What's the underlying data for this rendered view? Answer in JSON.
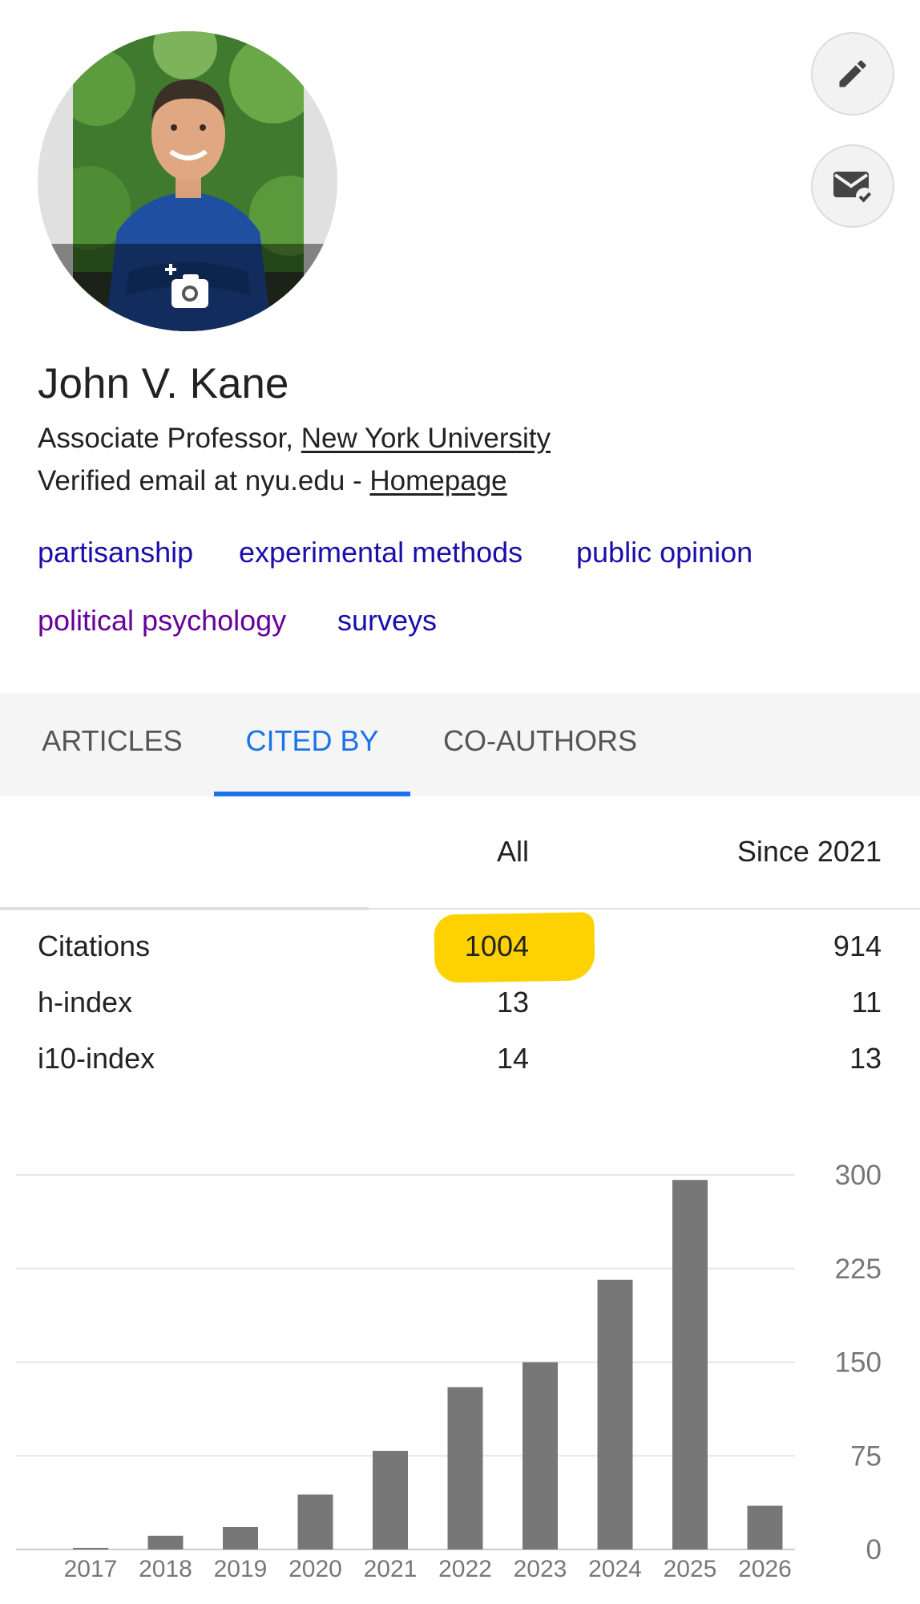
{
  "profile": {
    "name": "John V. Kane",
    "affiliation_prefix": "Associate Professor, ",
    "affiliation_link": "New York University",
    "email_text": "Verified email at nyu.edu - ",
    "homepage_link": "Homepage",
    "interests": [
      "partisanship",
      "experimental methods",
      "public opinion",
      "political psychology",
      "surveys"
    ],
    "icons": {
      "edit": "pencil-icon",
      "email": "mail-check-icon",
      "photo": "add-photo-icon"
    }
  },
  "tabs": [
    {
      "label": "ARTICLES",
      "active": false
    },
    {
      "label": "CITED BY",
      "active": true
    },
    {
      "label": "CO-AUTHORS",
      "active": false
    }
  ],
  "stats": {
    "col_all": "All",
    "col_since": "Since 2021",
    "rows": [
      {
        "label": "Citations",
        "all": "1004",
        "since": "914"
      },
      {
        "label": "h-index",
        "all": "13",
        "since": "11"
      },
      {
        "label": "i10-index",
        "all": "14",
        "since": "13"
      }
    ],
    "highlight_color": "#fed200"
  },
  "chart_data": {
    "type": "bar",
    "categories": [
      "2017",
      "2018",
      "2019",
      "2020",
      "2021",
      "2022",
      "2023",
      "2024",
      "2025",
      "2026"
    ],
    "values": [
      1,
      11,
      18,
      44,
      79,
      130,
      150,
      216,
      296,
      35
    ],
    "ylim": [
      0,
      300
    ],
    "yticks": [
      0,
      75,
      150,
      225,
      300
    ],
    "bar_color": "#777777",
    "grid": true
  },
  "colors": {
    "accent": "#1a73e8",
    "link": "#1a0dab",
    "visited": "#660099"
  }
}
